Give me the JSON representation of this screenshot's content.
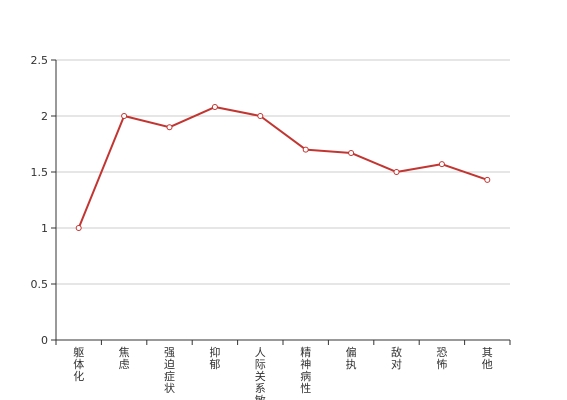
{
  "chart_data": {
    "type": "line",
    "categories": [
      "躯体化",
      "焦虑",
      "强迫症状",
      "抑郁",
      "人际关系敏感",
      "精神病性",
      "偏执",
      "敌对",
      "恐怖",
      "其他"
    ],
    "series": [
      {
        "values": [
          1.0,
          2.0,
          1.9,
          2.08,
          2.0,
          1.7,
          1.67,
          1.5,
          1.57,
          1.43
        ]
      }
    ],
    "ylim": [
      0,
      2.5
    ],
    "yticks": [
      0,
      0.5,
      1,
      1.5,
      2,
      2.5
    ],
    "grid": true,
    "colors": {
      "line": "#c23531",
      "grid": "#cccccc",
      "axis": "#333333",
      "point_fill": "#ffffff"
    }
  }
}
